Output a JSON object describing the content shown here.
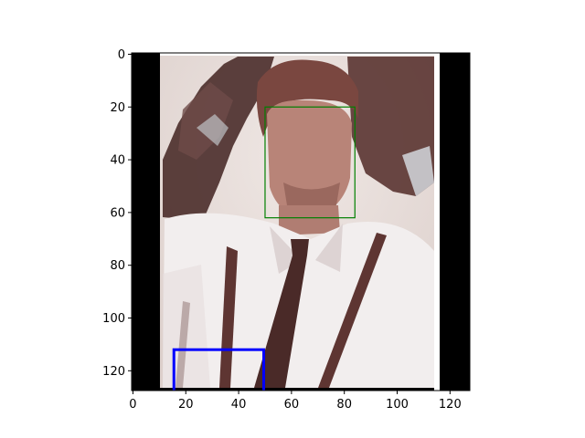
{
  "figure": {
    "kind": "image-with-boxes",
    "image_subject": "portrait photo of a man in a white shirt, dark tie and suspenders",
    "image_extent": {
      "width": 128,
      "height": 128
    },
    "content_x_range": [
      10.5,
      117.5
    ],
    "x_ticks": [
      0,
      20,
      40,
      60,
      80,
      100,
      120
    ],
    "y_ticks": [
      0,
      20,
      40,
      60,
      80,
      100,
      120
    ],
    "boxes": [
      {
        "label": "face-box",
        "color": "#008000",
        "x1": 50,
        "y1": 20,
        "x2": 84,
        "y2": 62
      },
      {
        "label": "lower-box",
        "color": "#0000ff",
        "x1": 15.5,
        "y1": 112,
        "x2": 49.5,
        "y2": 128
      }
    ],
    "colors": {
      "photo_bg": "#e8e2e0",
      "photo_tint": "#7a4740",
      "pad": "#000000"
    }
  }
}
